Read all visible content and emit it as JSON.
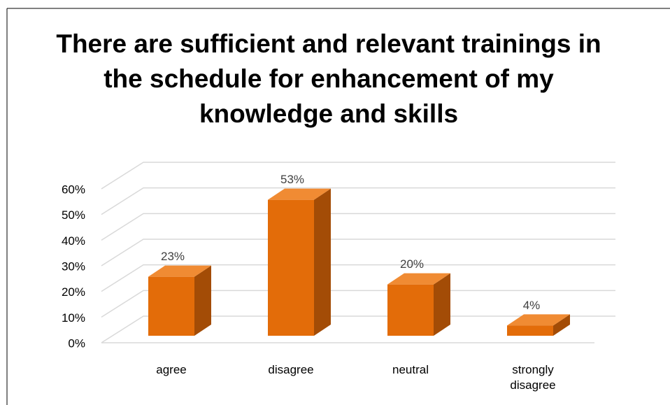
{
  "chart_data": {
    "type": "bar3d",
    "title": "There are sufficient and relevant trainings in the schedule for enhancement of my knowledge and skills",
    "categories": [
      "agree",
      "disagree",
      "neutral",
      "strongly disagree"
    ],
    "values": [
      23,
      53,
      20,
      4
    ],
    "value_labels": [
      "23%",
      "53%",
      "20%",
      "4%"
    ],
    "color": "#e36c09",
    "ylim": [
      0,
      60
    ],
    "yticks": [
      {
        "value": 0,
        "label": "0%"
      },
      {
        "value": 10,
        "label": "10%"
      },
      {
        "value": 20,
        "label": "20%"
      },
      {
        "value": 30,
        "label": "30%"
      },
      {
        "value": 40,
        "label": "40%"
      },
      {
        "value": 50,
        "label": "50%"
      },
      {
        "value": 60,
        "label": "60%"
      }
    ],
    "grid": true
  }
}
